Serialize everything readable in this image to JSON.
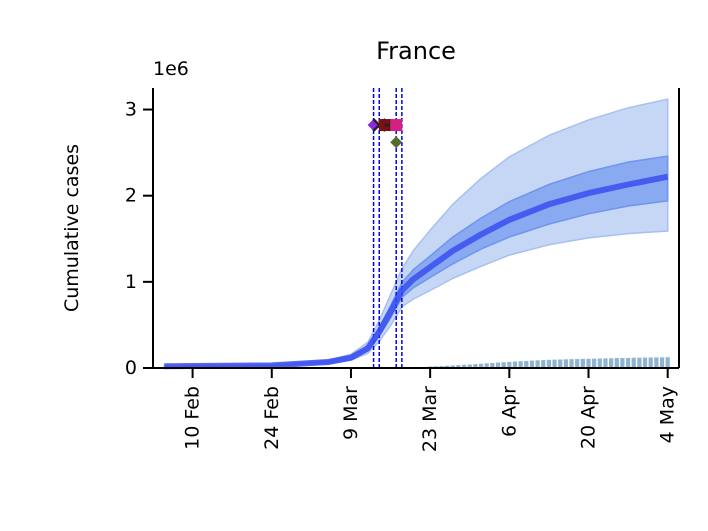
{
  "chart_data": {
    "type": "line",
    "title": "France",
    "ylabel": "Cumulative cases",
    "xlabel": "",
    "y_multiplier_label": "1e6",
    "ylim": [
      0,
      3.25
    ],
    "xlim": [
      "2020-02-03",
      "2020-05-06"
    ],
    "x_ticks": [
      "2020-02-10",
      "2020-02-24",
      "2020-03-09",
      "2020-03-23",
      "2020-04-06",
      "2020-04-20",
      "2020-05-04"
    ],
    "x_tick_labels": [
      "10 Feb",
      "24 Feb",
      "9 Mar",
      "23 Mar",
      "6 Apr",
      "20 Apr",
      "4 May"
    ],
    "y_ticks": [
      0,
      1,
      2,
      3
    ],
    "y_tick_labels": [
      "0",
      "1",
      "2",
      "3"
    ],
    "grid": false,
    "series": [
      {
        "kind": "median-line",
        "color": "#3a4ff0",
        "x": [
          "2020-02-05",
          "2020-02-24",
          "2020-03-05",
          "2020-03-09",
          "2020-03-12",
          "2020-03-14",
          "2020-03-16",
          "2020-03-18",
          "2020-03-20",
          "2020-03-23",
          "2020-03-27",
          "2020-04-01",
          "2020-04-06",
          "2020-04-13",
          "2020-04-20",
          "2020-04-27",
          "2020-05-04"
        ],
        "y": [
          0.02,
          0.03,
          0.07,
          0.12,
          0.23,
          0.42,
          0.65,
          0.9,
          1.03,
          1.17,
          1.36,
          1.55,
          1.72,
          1.9,
          2.03,
          2.13,
          2.22
        ]
      },
      {
        "kind": "band-inner",
        "color": "#6f95ee",
        "x": [
          "2020-02-05",
          "2020-02-24",
          "2020-03-05",
          "2020-03-09",
          "2020-03-12",
          "2020-03-14",
          "2020-03-16",
          "2020-03-18",
          "2020-03-20",
          "2020-03-23",
          "2020-03-27",
          "2020-04-01",
          "2020-04-06",
          "2020-04-13",
          "2020-04-20",
          "2020-04-27",
          "2020-05-04"
        ],
        "upper": [
          0.02,
          0.03,
          0.08,
          0.14,
          0.26,
          0.47,
          0.72,
          0.99,
          1.14,
          1.3,
          1.52,
          1.74,
          1.93,
          2.13,
          2.28,
          2.39,
          2.46
        ],
        "lower": [
          0.02,
          0.03,
          0.06,
          0.1,
          0.2,
          0.37,
          0.58,
          0.82,
          0.93,
          1.05,
          1.21,
          1.38,
          1.52,
          1.67,
          1.79,
          1.88,
          1.94
        ]
      },
      {
        "kind": "band-outer",
        "color": "#a7c0f0",
        "x": [
          "2020-02-05",
          "2020-02-24",
          "2020-03-05",
          "2020-03-09",
          "2020-03-12",
          "2020-03-14",
          "2020-03-16",
          "2020-03-18",
          "2020-03-20",
          "2020-03-23",
          "2020-03-27",
          "2020-04-01",
          "2020-04-06",
          "2020-04-13",
          "2020-04-20",
          "2020-04-27",
          "2020-05-04"
        ],
        "upper": [
          0.03,
          0.04,
          0.09,
          0.16,
          0.3,
          0.55,
          0.85,
          1.15,
          1.36,
          1.6,
          1.9,
          2.2,
          2.45,
          2.7,
          2.88,
          3.02,
          3.12
        ],
        "lower": [
          0.01,
          0.02,
          0.05,
          0.09,
          0.17,
          0.31,
          0.49,
          0.71,
          0.8,
          0.9,
          1.04,
          1.18,
          1.31,
          1.43,
          1.51,
          1.56,
          1.59
        ]
      },
      {
        "kind": "observed-bars",
        "color": "#8fb4cf",
        "x": [
          "2020-03-23",
          "2020-03-24",
          "2020-03-25",
          "2020-03-26",
          "2020-03-27",
          "2020-03-28",
          "2020-03-29",
          "2020-03-30",
          "2020-03-31",
          "2020-04-01",
          "2020-04-02",
          "2020-04-03",
          "2020-04-04",
          "2020-04-05",
          "2020-04-06",
          "2020-04-07",
          "2020-04-08",
          "2020-04-09",
          "2020-04-10",
          "2020-04-11",
          "2020-04-12",
          "2020-04-13",
          "2020-04-14",
          "2020-04-15",
          "2020-04-16",
          "2020-04-17",
          "2020-04-18",
          "2020-04-19",
          "2020-04-20",
          "2020-04-21",
          "2020-04-22",
          "2020-04-23",
          "2020-04-24",
          "2020-04-25",
          "2020-04-26",
          "2020-04-27",
          "2020-04-28",
          "2020-04-29",
          "2020-04-30",
          "2020-05-01",
          "2020-05-02",
          "2020-05-03",
          "2020-05-04"
        ],
        "y": [
          0.017,
          0.02,
          0.023,
          0.026,
          0.029,
          0.033,
          0.037,
          0.041,
          0.045,
          0.049,
          0.054,
          0.058,
          0.063,
          0.067,
          0.071,
          0.075,
          0.079,
          0.082,
          0.086,
          0.089,
          0.092,
          0.095,
          0.097,
          0.099,
          0.101,
          0.103,
          0.104,
          0.106,
          0.107,
          0.109,
          0.11,
          0.112,
          0.113,
          0.115,
          0.116,
          0.117,
          0.119,
          0.12,
          0.121,
          0.122,
          0.123,
          0.124,
          0.125
        ]
      }
    ],
    "vertical_lines": {
      "color": "#0000ee",
      "style": "dashed",
      "x": [
        "2020-03-13",
        "2020-03-14",
        "2020-03-17",
        "2020-03-18"
      ]
    },
    "intervention_markers": [
      {
        "x": "2020-03-13",
        "y": 2.82,
        "shape": "diamond",
        "color": "#8a2be2"
      },
      {
        "x": "2020-03-14",
        "y": 2.82,
        "shape": "x",
        "color": "#222222"
      },
      {
        "x": "2020-03-15",
        "y": 2.82,
        "shape": "square",
        "color": "#7b1010"
      },
      {
        "x": "2020-03-16",
        "y": 2.82,
        "shape": "plus",
        "color": "#222222"
      },
      {
        "x": "2020-03-17",
        "y": 2.82,
        "shape": "square",
        "color": "#d62080"
      },
      {
        "x": "2020-03-17",
        "y": 2.62,
        "shape": "diamond",
        "color": "#556b2f"
      }
    ]
  }
}
